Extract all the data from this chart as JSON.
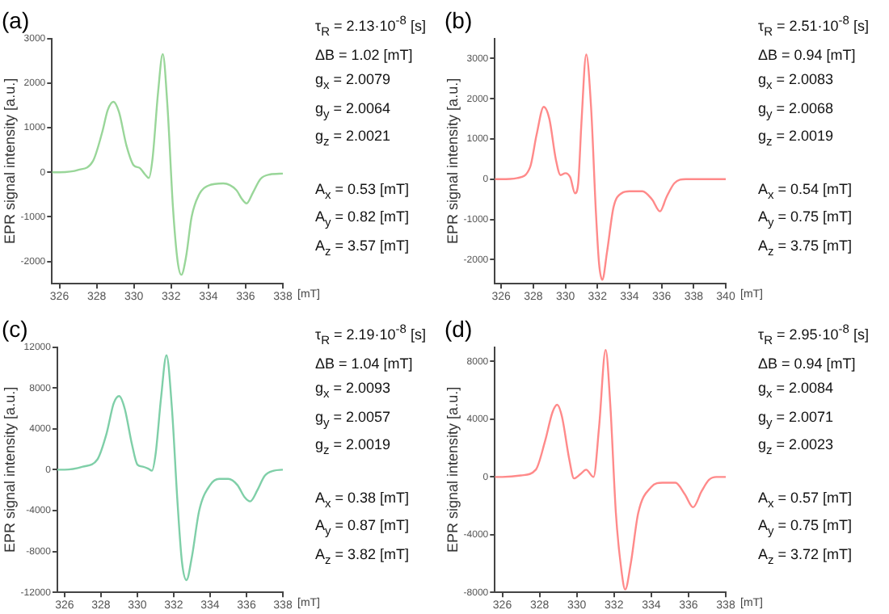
{
  "chart_data": [
    {
      "type": "line",
      "title": "(a)",
      "xlabel": "[mT]",
      "ylabel": "EPR signal intensity [a.u.]",
      "annotations": [
        "τ$_{R}$ = 2.13·10$^{-8}$ [s]",
        "ΔB = 1.02 [mT]",
        "g$_{x}$ = 2.0079",
        "g$_{y}$ = 2.0064",
        "g$_{z}$ = 2.0021",
        "A$_{x}$ = 0.53 [mT]",
        "A$_{y}$ = 0.82 [mT]",
        "A$_{z}$ = 3.57 [mT]"
      ],
      "xlim": [
        325.6,
        338
      ],
      "xticks": [
        326,
        328,
        330,
        332,
        334,
        336,
        338
      ],
      "ylim": [
        -2500,
        3000
      ],
      "yticks": [
        -2000,
        -1000,
        0,
        1000,
        2000,
        3000
      ],
      "series": [
        {
          "color": "#99d699",
          "x": [
            325.6,
            326,
            327,
            327.8,
            328.3,
            328.6,
            328.9,
            329.2,
            329.6,
            330,
            330.3,
            330.6,
            330.8,
            331,
            331.3,
            331.55,
            331.8,
            332.1,
            332.35,
            332.55,
            332.8,
            333.1,
            333.5,
            334,
            334.8,
            335.5,
            335.8,
            336.05,
            336.4,
            336.8,
            337.3,
            338
          ],
          "values": [
            0,
            0,
            50,
            250,
            900,
            1400,
            1580,
            1350,
            600,
            150,
            100,
            -50,
            -130,
            300,
            1800,
            2650,
            1500,
            -800,
            -2000,
            -2300,
            -1900,
            -1000,
            -500,
            -300,
            -250,
            -400,
            -600,
            -700,
            -450,
            -150,
            -50,
            -30
          ]
        }
      ]
    },
    {
      "type": "line",
      "title": "(b)",
      "xlabel": "[mT]",
      "ylabel": "EPR signal intensity [a.u.]",
      "annotations": [
        "τ$_{R}$ = 2.51·10$^{-8}$ [s]",
        "ΔB = 0.94 [mT]",
        "g$_{x}$ = 2.0083",
        "g$_{y}$ = 2.0068",
        "g$_{z}$ = 2.0019",
        "A$_{x}$ = 0.54 [mT]",
        "A$_{y}$ = 0.75 [mT]",
        "A$_{z}$ = 3.75 [mT]"
      ],
      "xlim": [
        325.6,
        340
      ],
      "xticks": [
        326,
        328,
        330,
        332,
        334,
        336,
        338,
        340
      ],
      "ylim": [
        -2600,
        3500
      ],
      "yticks": [
        -2000,
        -1000,
        0,
        1000,
        2000,
        3000
      ],
      "series": [
        {
          "color": "#ff8a8a",
          "x": [
            325.6,
            326,
            327,
            327.8,
            328.2,
            328.65,
            329,
            329.4,
            329.7,
            330,
            330.3,
            330.6,
            330.8,
            331,
            331.3,
            331.6,
            331.9,
            332.1,
            332.3,
            332.6,
            333,
            333.5,
            334,
            334.8,
            335.4,
            335.9,
            336.3,
            336.8,
            337.5,
            338.5,
            340
          ],
          "values": [
            0,
            0,
            30,
            300,
            1100,
            1800,
            1500,
            500,
            100,
            150,
            50,
            -350,
            -100,
            1400,
            3100,
            1800,
            -800,
            -2100,
            -2500,
            -1800,
            -700,
            -350,
            -300,
            -300,
            -500,
            -800,
            -450,
            -100,
            0,
            0,
            0
          ]
        }
      ]
    },
    {
      "type": "line",
      "title": "(c)",
      "xlabel": "[mT]",
      "ylabel": "EPR signal intensity [a.u.]",
      "annotations": [
        "τ$_{R}$ = 2.19·10$^{-8}$ [s]",
        "ΔB = 1.04 [mT]",
        "g$_{x}$ = 2.0093",
        "g$_{y}$ = 2.0057",
        "g$_{z}$ = 2.0019",
        "A$_{x}$ = 0.38 [mT]",
        "A$_{y}$ = 0.87 [mT]",
        "A$_{z}$ = 3.82 [mT]"
      ],
      "xlim": [
        325.6,
        338
      ],
      "xticks": [
        326,
        328,
        330,
        332,
        334,
        336,
        338
      ],
      "ylim": [
        -12000,
        12000
      ],
      "yticks": [
        -12000,
        -8000,
        -4000,
        0,
        4000,
        8000,
        12000
      ],
      "series": [
        {
          "color": "#7fcfa8",
          "x": [
            325.6,
            326,
            327,
            327.8,
            328.3,
            328.7,
            329,
            329.3,
            329.7,
            330,
            330.3,
            330.6,
            330.8,
            331,
            331.3,
            331.6,
            331.9,
            332.2,
            332.45,
            332.7,
            333,
            333.4,
            334,
            334.5,
            335,
            335.5,
            335.9,
            336.2,
            336.6,
            337,
            337.5,
            338
          ],
          "values": [
            0,
            0,
            300,
            1000,
            3500,
            6500,
            7200,
            6000,
            2500,
            500,
            300,
            100,
            -100,
            1500,
            7000,
            11200,
            6000,
            -3000,
            -9000,
            -10800,
            -8500,
            -4000,
            -1500,
            -900,
            -900,
            -1500,
            -2700,
            -3100,
            -2000,
            -600,
            -100,
            0
          ]
        }
      ]
    },
    {
      "type": "line",
      "title": "(d)",
      "xlabel": "[mT]",
      "ylabel": "EPR signal intensity [a.u.]",
      "annotations": [
        "τ$_{R}$ = 2.95·10$^{-8}$ [s]",
        "ΔB = 0.94 [mT]",
        "g$_{x}$ = 2.0084",
        "g$_{y}$ = 2.0071",
        "g$_{z}$ = 2.0023",
        "A$_{x}$ = 0.57 [mT]",
        "A$_{y}$ = 0.75 [mT]",
        "A$_{z}$ = 3.72 [mT]"
      ],
      "xlim": [
        325.6,
        338
      ],
      "xticks": [
        326,
        328,
        330,
        332,
        334,
        336,
        338
      ],
      "ylim": [
        -8000,
        9000
      ],
      "yticks": [
        -8000,
        -4000,
        0,
        4000,
        8000
      ],
      "series": [
        {
          "color": "#ff8a8a",
          "x": [
            325.6,
            326,
            327,
            327.8,
            328.3,
            328.7,
            328.95,
            329.2,
            329.6,
            329.85,
            330.2,
            330.5,
            330.9,
            331.2,
            331.55,
            331.8,
            332.1,
            332.4,
            332.6,
            332.9,
            333.3,
            334,
            334.6,
            335.3,
            335.8,
            336.25,
            336.7,
            337.1,
            337.5,
            338
          ],
          "values": [
            0,
            0,
            100,
            500,
            2500,
            4500,
            5000,
            4200,
            1200,
            -100,
            200,
            500,
            0,
            3500,
            8800,
            5000,
            -2500,
            -6500,
            -7800,
            -6000,
            -2500,
            -700,
            -400,
            -400,
            -1200,
            -2100,
            -1000,
            -200,
            0,
            0
          ]
        }
      ]
    }
  ]
}
